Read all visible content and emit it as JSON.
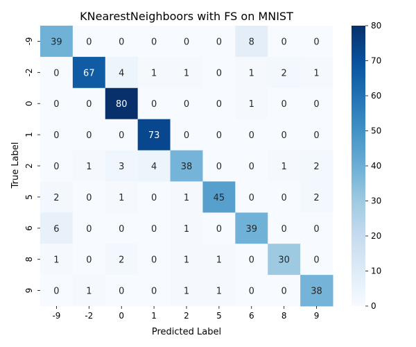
{
  "chart_data": {
    "type": "heatmap",
    "title": "KNearestNeighboors with FS on MNIST",
    "xlabel": "Predicted Label",
    "ylabel": "True Label",
    "x_categories": [
      "-9",
      "-2",
      "0",
      "1",
      "2",
      "5",
      "6",
      "8",
      "9"
    ],
    "y_categories": [
      "-9",
      "-2",
      "0",
      "1",
      "2",
      "5",
      "6",
      "8",
      "9"
    ],
    "values": [
      [
        39,
        0,
        0,
        0,
        0,
        0,
        8,
        0,
        0
      ],
      [
        0,
        67,
        4,
        1,
        1,
        0,
        1,
        2,
        1
      ],
      [
        0,
        0,
        80,
        0,
        0,
        0,
        1,
        0,
        0
      ],
      [
        0,
        0,
        0,
        73,
        0,
        0,
        0,
        0,
        0
      ],
      [
        0,
        1,
        3,
        4,
        38,
        0,
        0,
        1,
        2
      ],
      [
        2,
        0,
        1,
        0,
        1,
        45,
        0,
        0,
        2
      ],
      [
        6,
        0,
        0,
        0,
        1,
        0,
        39,
        0,
        0
      ],
      [
        1,
        0,
        2,
        0,
        1,
        1,
        0,
        30,
        0
      ],
      [
        0,
        1,
        0,
        0,
        1,
        1,
        0,
        0,
        38
      ]
    ],
    "colorbar": {
      "min": 0,
      "max": 80,
      "ticks": [
        "0",
        "10",
        "20",
        "30",
        "40",
        "50",
        "60",
        "70",
        "80"
      ],
      "colormap": "Blues"
    },
    "grid": false
  }
}
